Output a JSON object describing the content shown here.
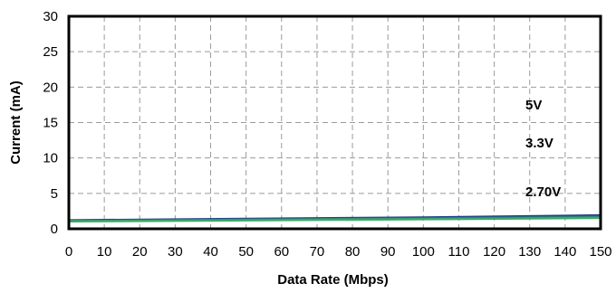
{
  "chart_data": {
    "type": "line",
    "title": "",
    "xlabel": "Data Rate (Mbps)",
    "ylabel": "Current (mA)",
    "xlim": [
      0,
      150
    ],
    "ylim": [
      0,
      30
    ],
    "x_ticks": [
      0,
      10,
      20,
      30,
      40,
      50,
      60,
      70,
      80,
      90,
      100,
      110,
      120,
      130,
      140,
      150
    ],
    "y_ticks": [
      0,
      5,
      10,
      15,
      20,
      25,
      30
    ],
    "grid": true,
    "grid_style": "dashed",
    "legend": "none",
    "annotations": [
      "5V",
      "3.3V",
      "2.70V"
    ],
    "series": [
      {
        "label_ref": "5V",
        "color": "#1f3f8f",
        "x": [
          0,
          50,
          100,
          150
        ],
        "y": [
          1.2,
          1.4,
          1.6,
          1.9
        ]
      },
      {
        "label_ref": "3.3V",
        "color": "#2a7d74",
        "x": [
          0,
          50,
          100,
          150
        ],
        "y": [
          1.1,
          1.3,
          1.45,
          1.7
        ]
      },
      {
        "label_ref": "2.70V",
        "color": "#3fa86a",
        "x": [
          0,
          50,
          100,
          150
        ],
        "y": [
          1.05,
          1.2,
          1.35,
          1.55
        ]
      }
    ]
  }
}
